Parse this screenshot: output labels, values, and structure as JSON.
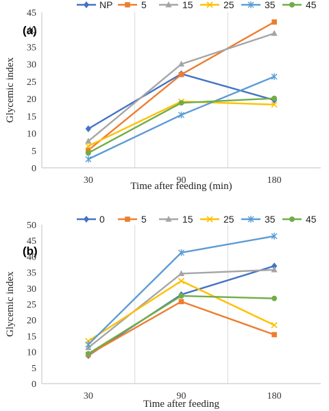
{
  "chart_data": [
    {
      "type": "line",
      "panel_label": "(a)",
      "x": [
        "30",
        "90",
        "180"
      ],
      "xlabel": "Time after feeding (min)",
      "ylabel": "Glycemic index",
      "ylim": [
        0,
        45
      ],
      "ytick_step": 5,
      "grid": "vertical",
      "legend_position": "top",
      "series": [
        {
          "name": "NP",
          "color": "#4472C4",
          "marker": "diamond",
          "values": [
            11.3,
            27.2,
            19.6
          ]
        },
        {
          "name": "5",
          "color": "#ED7D31",
          "marker": "square",
          "values": [
            5.1,
            27.0,
            42.2
          ]
        },
        {
          "name": "15",
          "color": "#A5A5A5",
          "marker": "triangle",
          "values": [
            7.7,
            30.0,
            38.9
          ]
        },
        {
          "name": "25",
          "color": "#FFC000",
          "marker": "x",
          "values": [
            6.3,
            19.2,
            18.3
          ]
        },
        {
          "name": "35",
          "color": "#5B9BD5",
          "marker": "star",
          "values": [
            2.5,
            15.3,
            26.4
          ]
        },
        {
          "name": "45",
          "color": "#70AD47",
          "marker": "circle",
          "values": [
            4.3,
            18.8,
            20.1
          ]
        }
      ]
    },
    {
      "type": "line",
      "panel_label": "(b)",
      "x": [
        "30",
        "90",
        "180"
      ],
      "xlabel": "Time after feeding",
      "ylabel": "Glycemic index",
      "ylim": [
        0,
        50
      ],
      "ytick_step": 5,
      "grid": "vertical",
      "legend_position": "top",
      "series": [
        {
          "name": "0",
          "color": "#4472C4",
          "marker": "diamond",
          "values": [
            8.8,
            28.0,
            37.0
          ]
        },
        {
          "name": "5",
          "color": "#ED7D31",
          "marker": "square",
          "values": [
            9.1,
            25.8,
            15.4
          ]
        },
        {
          "name": "15",
          "color": "#A5A5A5",
          "marker": "triangle",
          "values": [
            11.3,
            34.6,
            35.8
          ]
        },
        {
          "name": "25",
          "color": "#FFC000",
          "marker": "x",
          "values": [
            13.4,
            32.3,
            18.4
          ]
        },
        {
          "name": "35",
          "color": "#5B9BD5",
          "marker": "star",
          "values": [
            12.3,
            41.2,
            46.4
          ]
        },
        {
          "name": "45",
          "color": "#70AD47",
          "marker": "circle",
          "values": [
            9.4,
            27.6,
            26.8
          ]
        }
      ]
    }
  ]
}
